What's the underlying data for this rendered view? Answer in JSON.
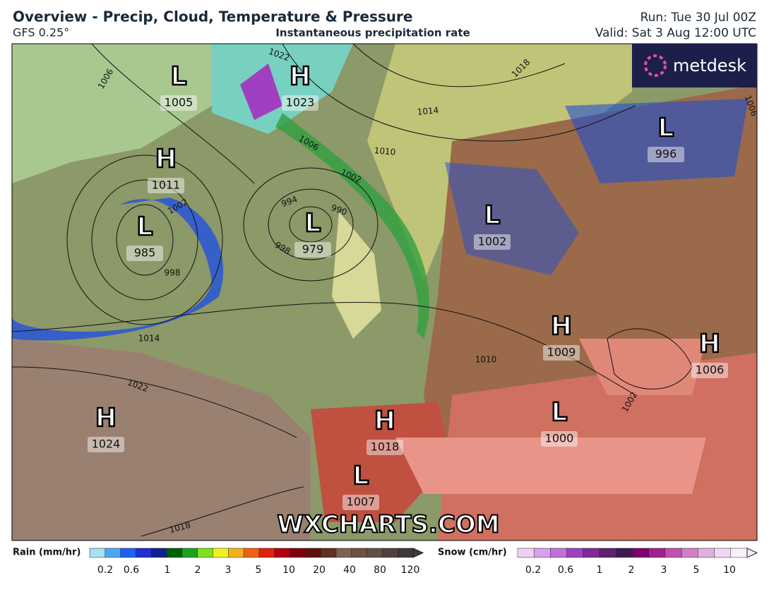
{
  "header": {
    "title": "Overview - Precip, Cloud, Temperature & Pressure",
    "model": "GFS 0.25°",
    "subtitle": "Instantaneous precipitation rate",
    "run": "Run: Tue 30 Jul 00Z",
    "valid": "Valid: Sat 3 Aug 12:00 UTC"
  },
  "map": {
    "logo": "metdesk",
    "watermark": "WXCHARTS.COM",
    "centers": [
      {
        "kind": "L",
        "value": 1005
      },
      {
        "kind": "H",
        "value": 1023
      },
      {
        "kind": "H",
        "value": 1011
      },
      {
        "kind": "L",
        "value": 985
      },
      {
        "kind": "L",
        "value": 979
      },
      {
        "kind": "L",
        "value": 1002
      },
      {
        "kind": "L",
        "value": 996
      },
      {
        "kind": "H",
        "value": 1009
      },
      {
        "kind": "H",
        "value": 1006
      },
      {
        "kind": "L",
        "value": 1000
      },
      {
        "kind": "H",
        "value": 1018
      },
      {
        "kind": "H",
        "value": 1024
      },
      {
        "kind": "L",
        "value": 1007
      }
    ],
    "isobar_labels": [
      1006,
      1022,
      1018,
      1014,
      1006,
      1010,
      1002,
      994,
      990,
      998,
      1002,
      998,
      1014,
      1022,
      1018,
      1010,
      1006,
      1002
    ]
  },
  "legend": {
    "rain": {
      "label": "Rain (mm/hr)",
      "ticks": [
        0.2,
        0.6,
        1,
        2,
        3,
        5,
        10,
        20,
        40,
        80,
        120
      ],
      "colors": [
        "#a8e0f0",
        "#4aa8f0",
        "#2060f0",
        "#2030d0",
        "#102090",
        "#006000",
        "#20a020",
        "#80e020",
        "#f0f020",
        "#f0b020",
        "#f06010",
        "#e02010",
        "#b00010",
        "#800010",
        "#601010",
        "#603020",
        "#806050",
        "#705040",
        "#605048",
        "#504040",
        "#403838"
      ]
    },
    "snow": {
      "label": "Snow (cm/hr)",
      "ticks": [
        0.2,
        0.6,
        1,
        2,
        3,
        5,
        10
      ],
      "colors": [
        "#f0d0f0",
        "#d8a0e8",
        "#c070d8",
        "#a040c0",
        "#802898",
        "#602070",
        "#401850",
        "#800070",
        "#a02090",
        "#c050b0",
        "#d080c8",
        "#e0b0e0",
        "#f0d8f0",
        "#f8f0f8"
      ]
    }
  }
}
